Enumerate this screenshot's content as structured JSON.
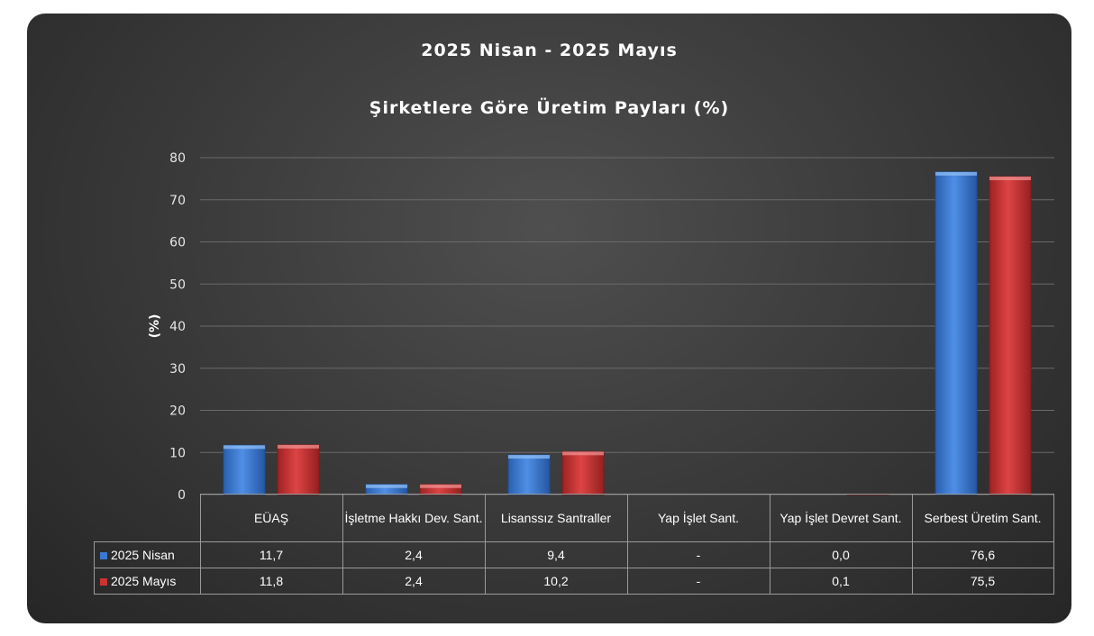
{
  "chart_data": {
    "type": "bar",
    "title": "2025 Nisan - 2025 Mayıs",
    "subtitle": "Şirketlere Göre Üretim Payları (%)",
    "ylabel": "(%)",
    "xlabel": "",
    "ylim": [
      0,
      80
    ],
    "yticks": [
      "0",
      "10",
      "20",
      "30",
      "40",
      "50",
      "60",
      "70",
      "80"
    ],
    "grid": true,
    "legend": "data-table",
    "categories": [
      "EÜAŞ",
      "İşletme Hakkı Dev. Sant.",
      "Lisanssız Santraller",
      "Yap İşlet Sant.",
      "Yap İşlet Devret Sant.",
      "Serbest Üretim Sant."
    ],
    "series": [
      {
        "name": "2025 Nisan",
        "color": "#3a78d2",
        "values": [
          11.7,
          2.4,
          9.4,
          null,
          0.0,
          76.6
        ],
        "labels": [
          "11,7",
          "2,4",
          "9,4",
          "-",
          "0,0",
          "76,6"
        ]
      },
      {
        "name": "2025 Mayıs",
        "color": "#cc3333",
        "values": [
          11.8,
          2.4,
          10.2,
          null,
          0.1,
          75.5
        ],
        "labels": [
          "11,8",
          "2,4",
          "10,2",
          "-",
          "0,1",
          "75,5"
        ]
      }
    ]
  }
}
